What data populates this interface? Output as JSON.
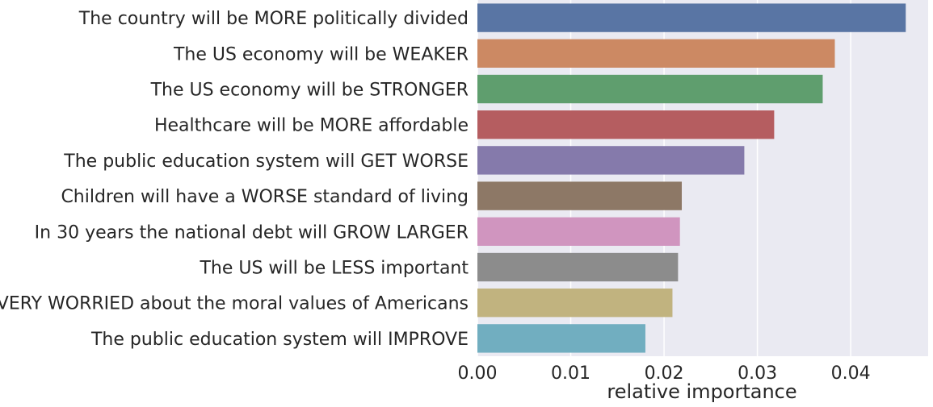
{
  "chart_data": {
    "type": "bar",
    "orientation": "horizontal",
    "categories": [
      "The country will be MORE politically divided",
      "The US economy will be WEAKER",
      "The US economy will be STRONGER",
      "Healthcare will be MORE affordable",
      "The public education system will GET WORSE",
      "Children will have a WORSE standard of living",
      "In 30 years the national debt will GROW LARGER",
      "The US will be LESS important",
      "Are VERY WORRIED about the moral values of Americans",
      "The public education system will IMPROVE"
    ],
    "values": [
      0.0459,
      0.0383,
      0.037,
      0.0318,
      0.0286,
      0.0219,
      0.0217,
      0.0215,
      0.0209,
      0.018
    ],
    "colors": [
      "#5975a4",
      "#cc8963",
      "#5f9e6e",
      "#b55d60",
      "#857aab",
      "#8d7866",
      "#d095bf",
      "#8c8c8c",
      "#c1b37f",
      "#71aec0"
    ],
    "title": "",
    "xlabel": "relative importance",
    "ylabel": "",
    "xlim": [
      0,
      0.0483
    ],
    "xticks": [
      0.0,
      0.01,
      0.02,
      0.03,
      0.04
    ],
    "xtick_labels": [
      "0.00",
      "0.01",
      "0.02",
      "0.03",
      "0.04"
    ],
    "grid": true,
    "background": "#eaeaf2",
    "grid_color": "#ffffff"
  }
}
